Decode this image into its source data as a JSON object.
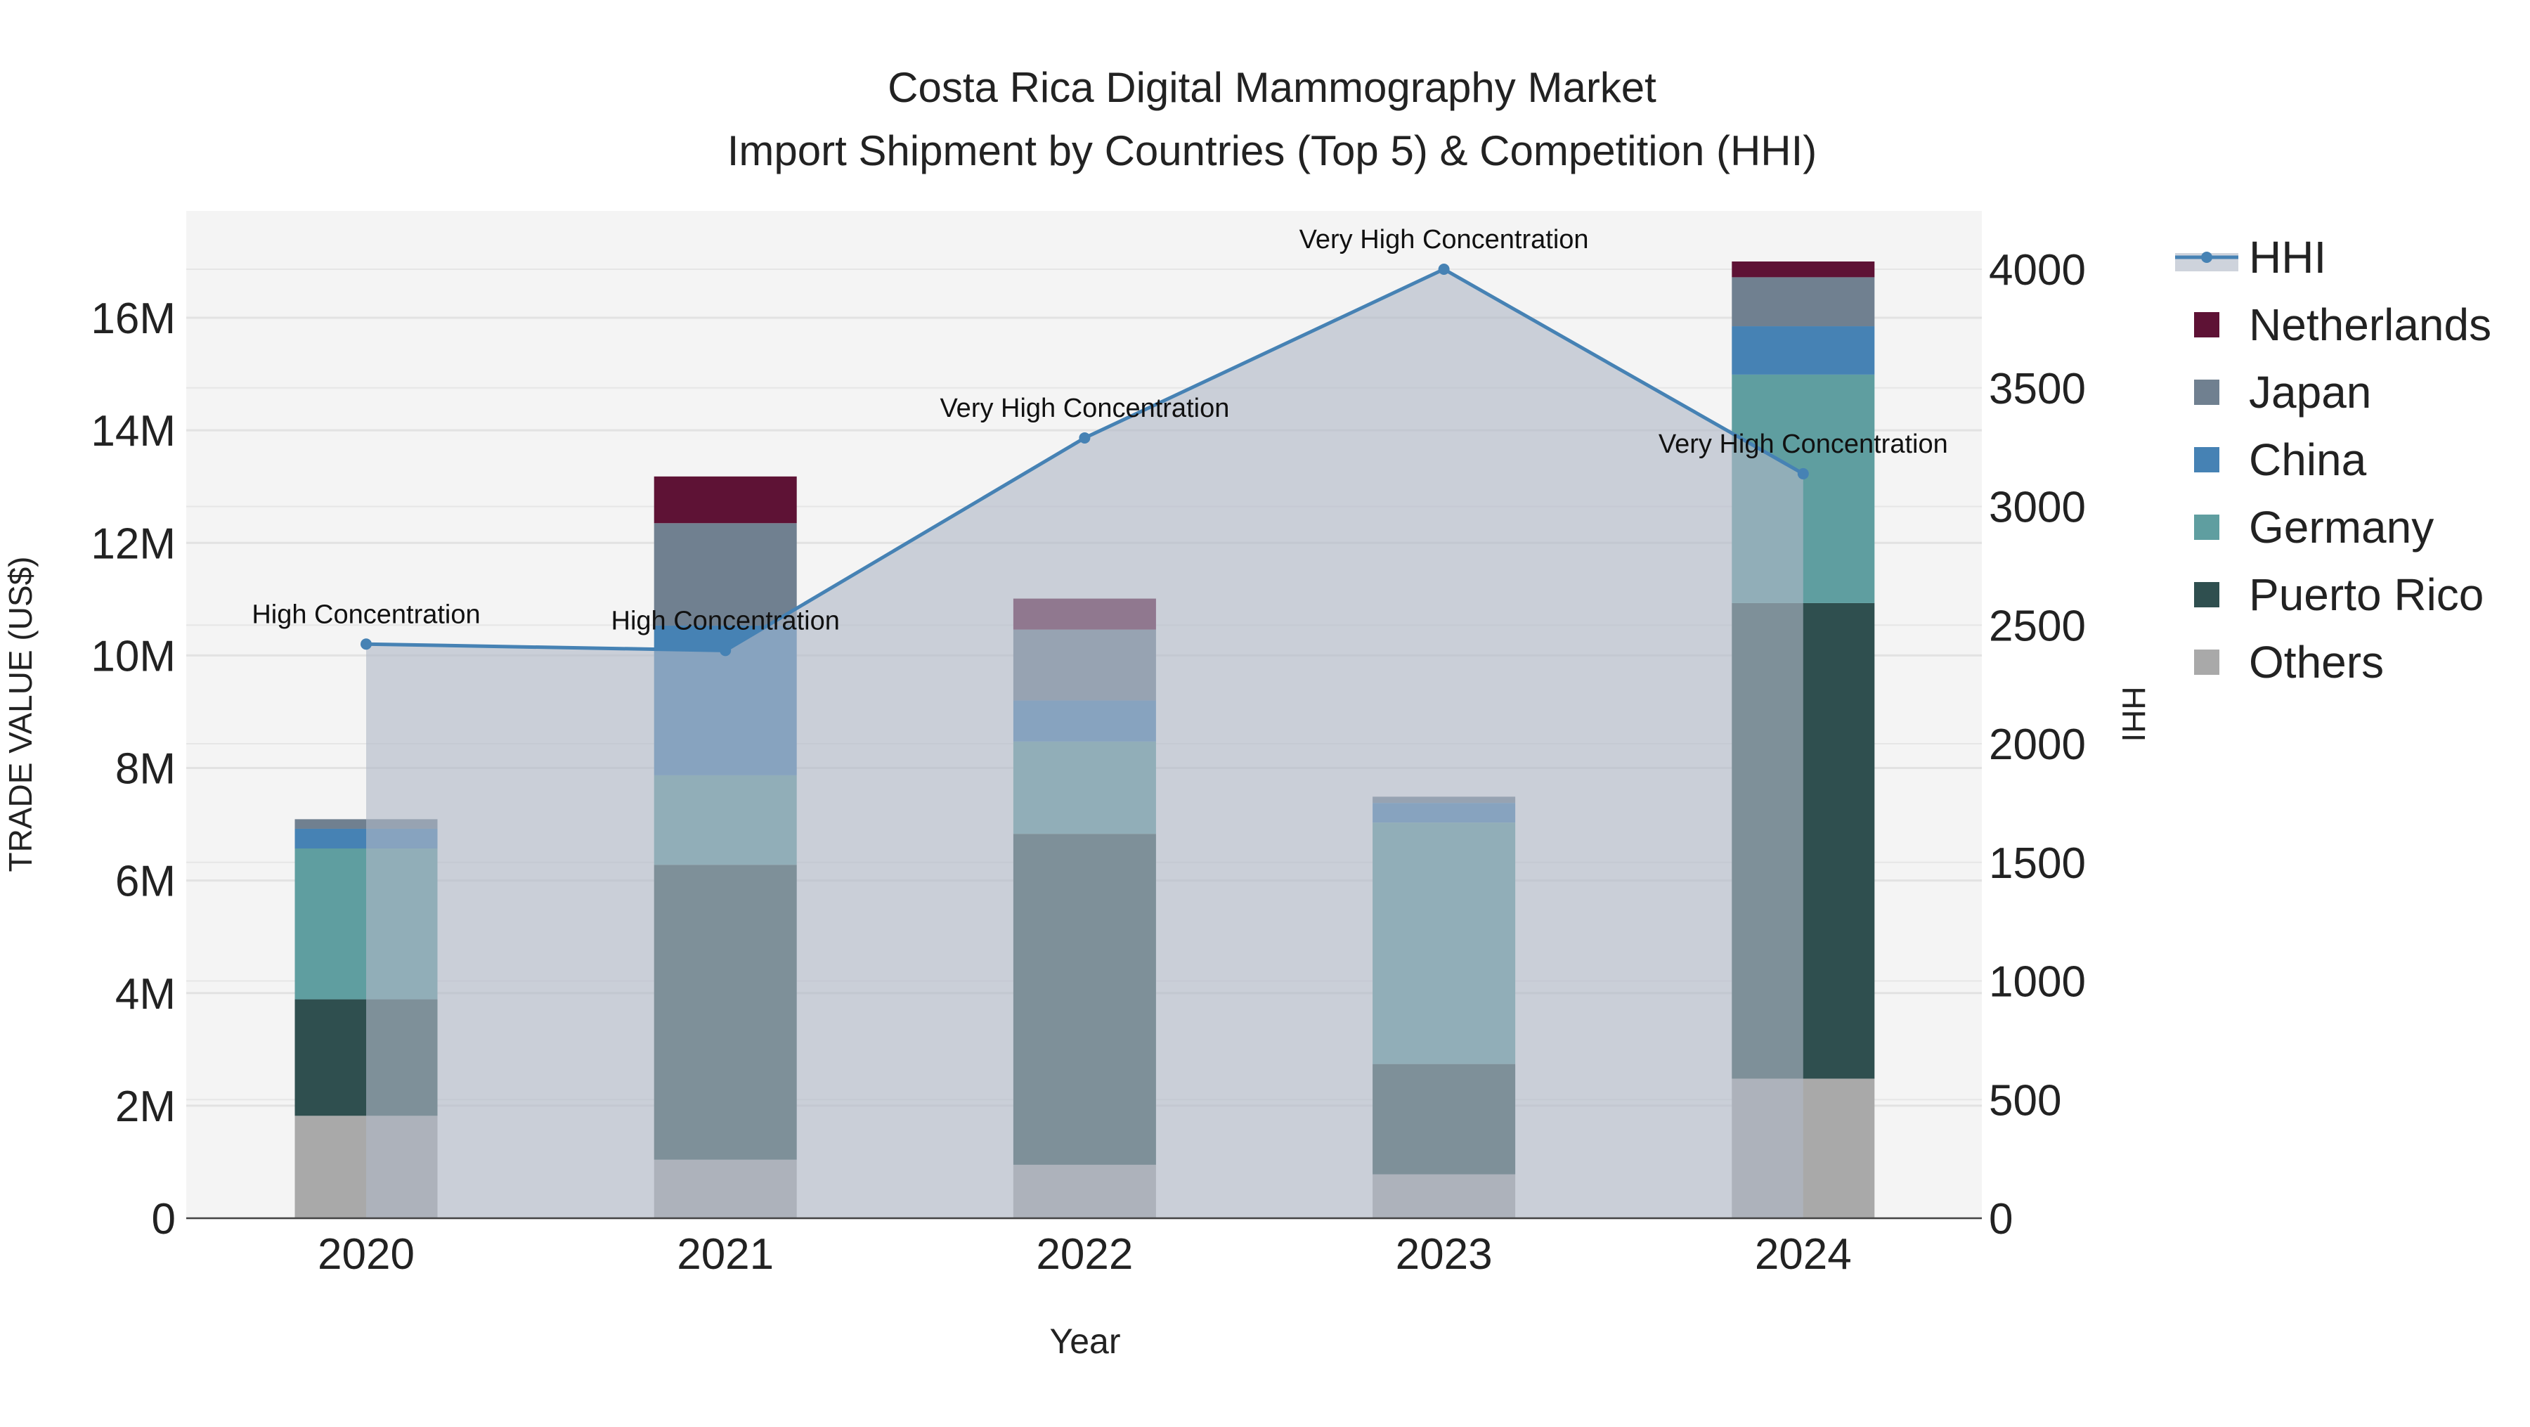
{
  "chart_data": {
    "type": "bar",
    "stacked": true,
    "title": "Costa Rica Digital Mammography Market",
    "subtitle": "Import Shipment by Countries (Top 5) & Competition (HHI)",
    "xlabel": "Year",
    "ylabel": "TRADE VALUE (US$)",
    "y2label": "HHI",
    "categories": [
      "2020",
      "2021",
      "2022",
      "2023",
      "2024"
    ],
    "ylim": [
      0,
      17.9
    ],
    "y_ticks": [
      0,
      2,
      4,
      6,
      8,
      10,
      12,
      14,
      16
    ],
    "y_tick_labels": [
      "0",
      "2M",
      "4M",
      "6M",
      "8M",
      "10M",
      "12M",
      "14M",
      "16M"
    ],
    "y2lim": [
      0,
      4240
    ],
    "y2_ticks": [
      0,
      500,
      1000,
      1500,
      2000,
      2500,
      3000,
      3500,
      4000
    ],
    "y2_tick_labels": [
      "0",
      "500",
      "1000",
      "1500",
      "2000",
      "2500",
      "3000",
      "3500",
      "4000"
    ],
    "units": "million US$",
    "series": [
      {
        "name": "Others",
        "color": "#a9a9a9",
        "values": [
          1.82,
          1.04,
          0.95,
          0.78,
          2.48
        ]
      },
      {
        "name": "Puerto Rico",
        "color": "#2f4f4f",
        "values": [
          2.07,
          5.24,
          5.88,
          1.96,
          8.45
        ]
      },
      {
        "name": "Germany",
        "color": "#5f9ea0",
        "values": [
          2.68,
          1.59,
          1.64,
          4.29,
          4.06
        ]
      },
      {
        "name": "China",
        "color": "#4682b4",
        "values": [
          0.35,
          2.66,
          0.73,
          0.35,
          0.86
        ]
      },
      {
        "name": "Japan",
        "color": "#708090",
        "values": [
          0.17,
          1.82,
          1.26,
          0.11,
          0.87
        ]
      },
      {
        "name": "Netherlands",
        "color": "#5e1235",
        "values": [
          0,
          0.83,
          0.55,
          0,
          0.28
        ]
      }
    ],
    "line": {
      "name": "HHI",
      "color": "#4682b4",
      "values": [
        2420,
        2393,
        3289,
        4000,
        3138
      ],
      "annotations": [
        "High Concentration",
        "High Concentration",
        "Very High Concentration",
        "Very High Concentration",
        "Very High Concentration"
      ]
    },
    "legend_order": [
      "HHI",
      "Netherlands",
      "Japan",
      "China",
      "Germany",
      "Puerto Rico",
      "Others"
    ],
    "legend_position": "right",
    "grid": true
  }
}
